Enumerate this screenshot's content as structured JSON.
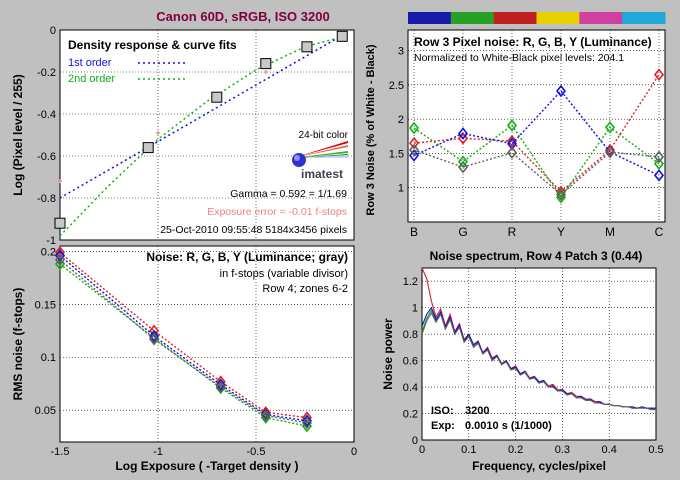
{
  "figure": {
    "title": "Canon 60D, sRGB, ISO 3200",
    "title_color": "#800040"
  },
  "colors": {
    "red": "#e02020",
    "green": "#10b010",
    "blue": "#1010e0",
    "gray": "#606060",
    "pink": "#f08080"
  },
  "chart_data": [
    {
      "id": "density",
      "type": "scatter",
      "title": "Density response & curve fits",
      "xlabel": "",
      "ylabel": "Log (Pixel level / 255)",
      "xlim": [
        -1.5,
        0
      ],
      "ylim": [
        -1,
        0
      ],
      "xticks": [
        -1.5,
        -1,
        -0.5,
        0
      ],
      "yticks": [
        -1,
        -0.8,
        -0.6,
        -0.4,
        -0.2,
        0
      ],
      "ytick_labels": [
        "-1",
        "-0.8",
        "-0.6",
        "-0.4",
        "-0.2",
        "0"
      ],
      "grid": true,
      "legend": [
        {
          "label": "1st order",
          "color": "#1010e0"
        },
        {
          "label": "2nd order",
          "color": "#10b010"
        }
      ],
      "series": [
        {
          "name": "measured",
          "marker": "square",
          "x": [
            -1.5,
            -1.05,
            -0.7,
            -0.45,
            -0.24,
            -0.06
          ],
          "y": [
            -0.92,
            -0.56,
            -0.32,
            -0.16,
            -0.08,
            -0.03
          ]
        },
        {
          "name": "1st order",
          "style": "dotted",
          "x": [
            -1.5,
            -0.05
          ],
          "y": [
            -0.8,
            -0.02
          ]
        },
        {
          "name": "2nd order",
          "style": "dotted",
          "x": [
            -1.5,
            -1.25,
            -1.0,
            -0.75,
            -0.5,
            -0.25,
            -0.05
          ],
          "y": [
            -0.98,
            -0.74,
            -0.52,
            -0.34,
            -0.19,
            -0.08,
            -0.03
          ]
        },
        {
          "name": "red points",
          "marker": "plus",
          "x": [
            -1.5,
            -1.0,
            -0.45
          ],
          "y": [
            -0.72,
            -0.49,
            -0.2
          ]
        }
      ],
      "logo_text": "24-bit color",
      "brand": "imatest",
      "annotations": [
        "Gamma = 0.592 = 1/1.69",
        "Exposure error = -0.01 f-stops",
        "25-Oct-2010 09:55:48   5184x3456 pixels"
      ]
    },
    {
      "id": "noise_zones",
      "type": "line",
      "title": "Row 3 Pixel noise: R, G, B, Y (Luminance)",
      "subtitle": "Normalized to White-Black pixel levels: 204.1",
      "xlabel": "",
      "ylabel": "Row 3 Noise (% of White - Black)",
      "categories": [
        "B",
        "G",
        "R",
        "Y",
        "M",
        "C"
      ],
      "ylim": [
        0.5,
        3.3
      ],
      "yticks": [
        1,
        1.5,
        2,
        2.5,
        3
      ],
      "grid": true,
      "swatches": [
        "#1a1aa8",
        "#28a028",
        "#c02020",
        "#e8d000",
        "#d040a0",
        "#20a8d8"
      ],
      "series": [
        {
          "name": "R",
          "color": "#e02020",
          "values": [
            1.65,
            1.72,
            1.68,
            0.94,
            1.55,
            2.65
          ]
        },
        {
          "name": "G",
          "color": "#10b010",
          "values": [
            1.87,
            1.38,
            1.91,
            0.86,
            1.88,
            1.35
          ]
        },
        {
          "name": "B",
          "color": "#1010e0",
          "values": [
            1.47,
            1.79,
            1.64,
            2.41,
            1.52,
            1.18
          ]
        },
        {
          "name": "Y",
          "color": "#606060",
          "values": [
            1.55,
            1.3,
            1.51,
            0.9,
            1.52,
            1.45
          ]
        }
      ]
    },
    {
      "id": "noise_fstops",
      "type": "line",
      "title": "Noise: R, G, B, Y (Luminance; gray)",
      "subtitle": [
        "in f-stops (variable divisor)",
        "Row 4; zones 6-2"
      ],
      "xlabel": "Log Exposure ( -Target density )",
      "ylabel": "RMS noise (f-stops)",
      "xlim": [
        -1.5,
        0
      ],
      "ylim": [
        0.02,
        0.205
      ],
      "xticks": [
        -1.5,
        -1,
        -0.5,
        0
      ],
      "yticks": [
        0.05,
        0.1,
        0.15,
        0.2
      ],
      "grid": true,
      "x": [
        -1.5,
        -1.02,
        -0.68,
        -0.45,
        -0.24
      ],
      "series": [
        {
          "name": "R",
          "color": "#e02020",
          "values": [
            0.199,
            0.125,
            0.077,
            0.048,
            0.043
          ]
        },
        {
          "name": "G",
          "color": "#10b010",
          "values": [
            0.188,
            0.118,
            0.071,
            0.043,
            0.035
          ]
        },
        {
          "name": "B",
          "color": "#1010e0",
          "values": [
            0.196,
            0.12,
            0.074,
            0.046,
            0.04
          ]
        },
        {
          "name": "Y",
          "color": "#606060",
          "values": [
            0.192,
            0.117,
            0.072,
            0.045,
            0.038
          ]
        }
      ]
    },
    {
      "id": "spectrum",
      "type": "line",
      "title": "Noise spectrum, Row 4 Patch 3 (0.44)",
      "xlabel": "Frequency, cycles/pixel",
      "ylabel": "Noise power",
      "xlim": [
        0,
        0.5
      ],
      "ylim": [
        0,
        1.3
      ],
      "xticks": [
        0,
        0.1,
        0.2,
        0.3,
        0.4,
        0.5
      ],
      "yticks": [
        0,
        0.2,
        0.4,
        0.6,
        0.8,
        1,
        1.2
      ],
      "grid": true,
      "x": [
        0,
        0.01,
        0.02,
        0.03,
        0.04,
        0.05,
        0.06,
        0.07,
        0.08,
        0.09,
        0.1,
        0.11,
        0.12,
        0.13,
        0.14,
        0.15,
        0.16,
        0.17,
        0.18,
        0.19,
        0.2,
        0.21,
        0.22,
        0.23,
        0.24,
        0.25,
        0.26,
        0.27,
        0.28,
        0.29,
        0.3,
        0.31,
        0.32,
        0.33,
        0.34,
        0.35,
        0.36,
        0.37,
        0.38,
        0.39,
        0.4,
        0.41,
        0.42,
        0.43,
        0.44,
        0.45,
        0.46,
        0.47,
        0.48,
        0.49,
        0.5
      ],
      "series": [
        {
          "name": "R",
          "color": "#e02020",
          "values": [
            1.3,
            1.22,
            1.05,
            0.93,
            0.99,
            0.86,
            0.95,
            0.82,
            0.88,
            0.76,
            0.8,
            0.72,
            0.75,
            0.66,
            0.7,
            0.62,
            0.64,
            0.58,
            0.6,
            0.54,
            0.56,
            0.5,
            0.52,
            0.47,
            0.48,
            0.44,
            0.45,
            0.41,
            0.42,
            0.38,
            0.38,
            0.35,
            0.36,
            0.33,
            0.33,
            0.31,
            0.31,
            0.29,
            0.29,
            0.27,
            0.27,
            0.26,
            0.26,
            0.25,
            0.25,
            0.25,
            0.24,
            0.25,
            0.24,
            0.24,
            0.24
          ]
        },
        {
          "name": "G",
          "color": "#10b010",
          "values": [
            0.82,
            0.92,
            0.98,
            0.9,
            0.96,
            0.84,
            0.92,
            0.8,
            0.86,
            0.74,
            0.79,
            0.71,
            0.74,
            0.65,
            0.69,
            0.61,
            0.63,
            0.57,
            0.59,
            0.53,
            0.55,
            0.5,
            0.51,
            0.46,
            0.47,
            0.43,
            0.44,
            0.4,
            0.41,
            0.37,
            0.37,
            0.34,
            0.35,
            0.32,
            0.32,
            0.3,
            0.3,
            0.28,
            0.28,
            0.27,
            0.27,
            0.26,
            0.26,
            0.25,
            0.25,
            0.24,
            0.24,
            0.25,
            0.24,
            0.24,
            0.23
          ]
        },
        {
          "name": "B",
          "color": "#1010e0",
          "values": [
            0.86,
            0.95,
            1.0,
            0.91,
            0.97,
            0.85,
            0.93,
            0.81,
            0.87,
            0.75,
            0.8,
            0.72,
            0.74,
            0.66,
            0.69,
            0.61,
            0.64,
            0.57,
            0.6,
            0.54,
            0.55,
            0.5,
            0.52,
            0.46,
            0.48,
            0.44,
            0.45,
            0.4,
            0.41,
            0.37,
            0.38,
            0.35,
            0.35,
            0.32,
            0.33,
            0.3,
            0.31,
            0.28,
            0.29,
            0.27,
            0.27,
            0.26,
            0.26,
            0.25,
            0.25,
            0.25,
            0.24,
            0.25,
            0.24,
            0.24,
            0.24
          ]
        },
        {
          "name": "Y",
          "color": "#606060",
          "values": [
            0.8,
            0.9,
            0.96,
            0.89,
            0.95,
            0.84,
            0.91,
            0.8,
            0.85,
            0.74,
            0.78,
            0.7,
            0.73,
            0.65,
            0.68,
            0.6,
            0.63,
            0.57,
            0.59,
            0.53,
            0.54,
            0.49,
            0.51,
            0.46,
            0.47,
            0.43,
            0.44,
            0.4,
            0.4,
            0.37,
            0.37,
            0.34,
            0.35,
            0.32,
            0.32,
            0.3,
            0.3,
            0.28,
            0.28,
            0.27,
            0.27,
            0.26,
            0.26,
            0.25,
            0.25,
            0.24,
            0.24,
            0.24,
            0.24,
            0.23,
            0.23
          ]
        }
      ],
      "annotations": [
        {
          "label": "ISO:",
          "value": "3200"
        },
        {
          "label": "Exp:",
          "value": "0.0010 s  (1/1000)"
        }
      ]
    }
  ]
}
